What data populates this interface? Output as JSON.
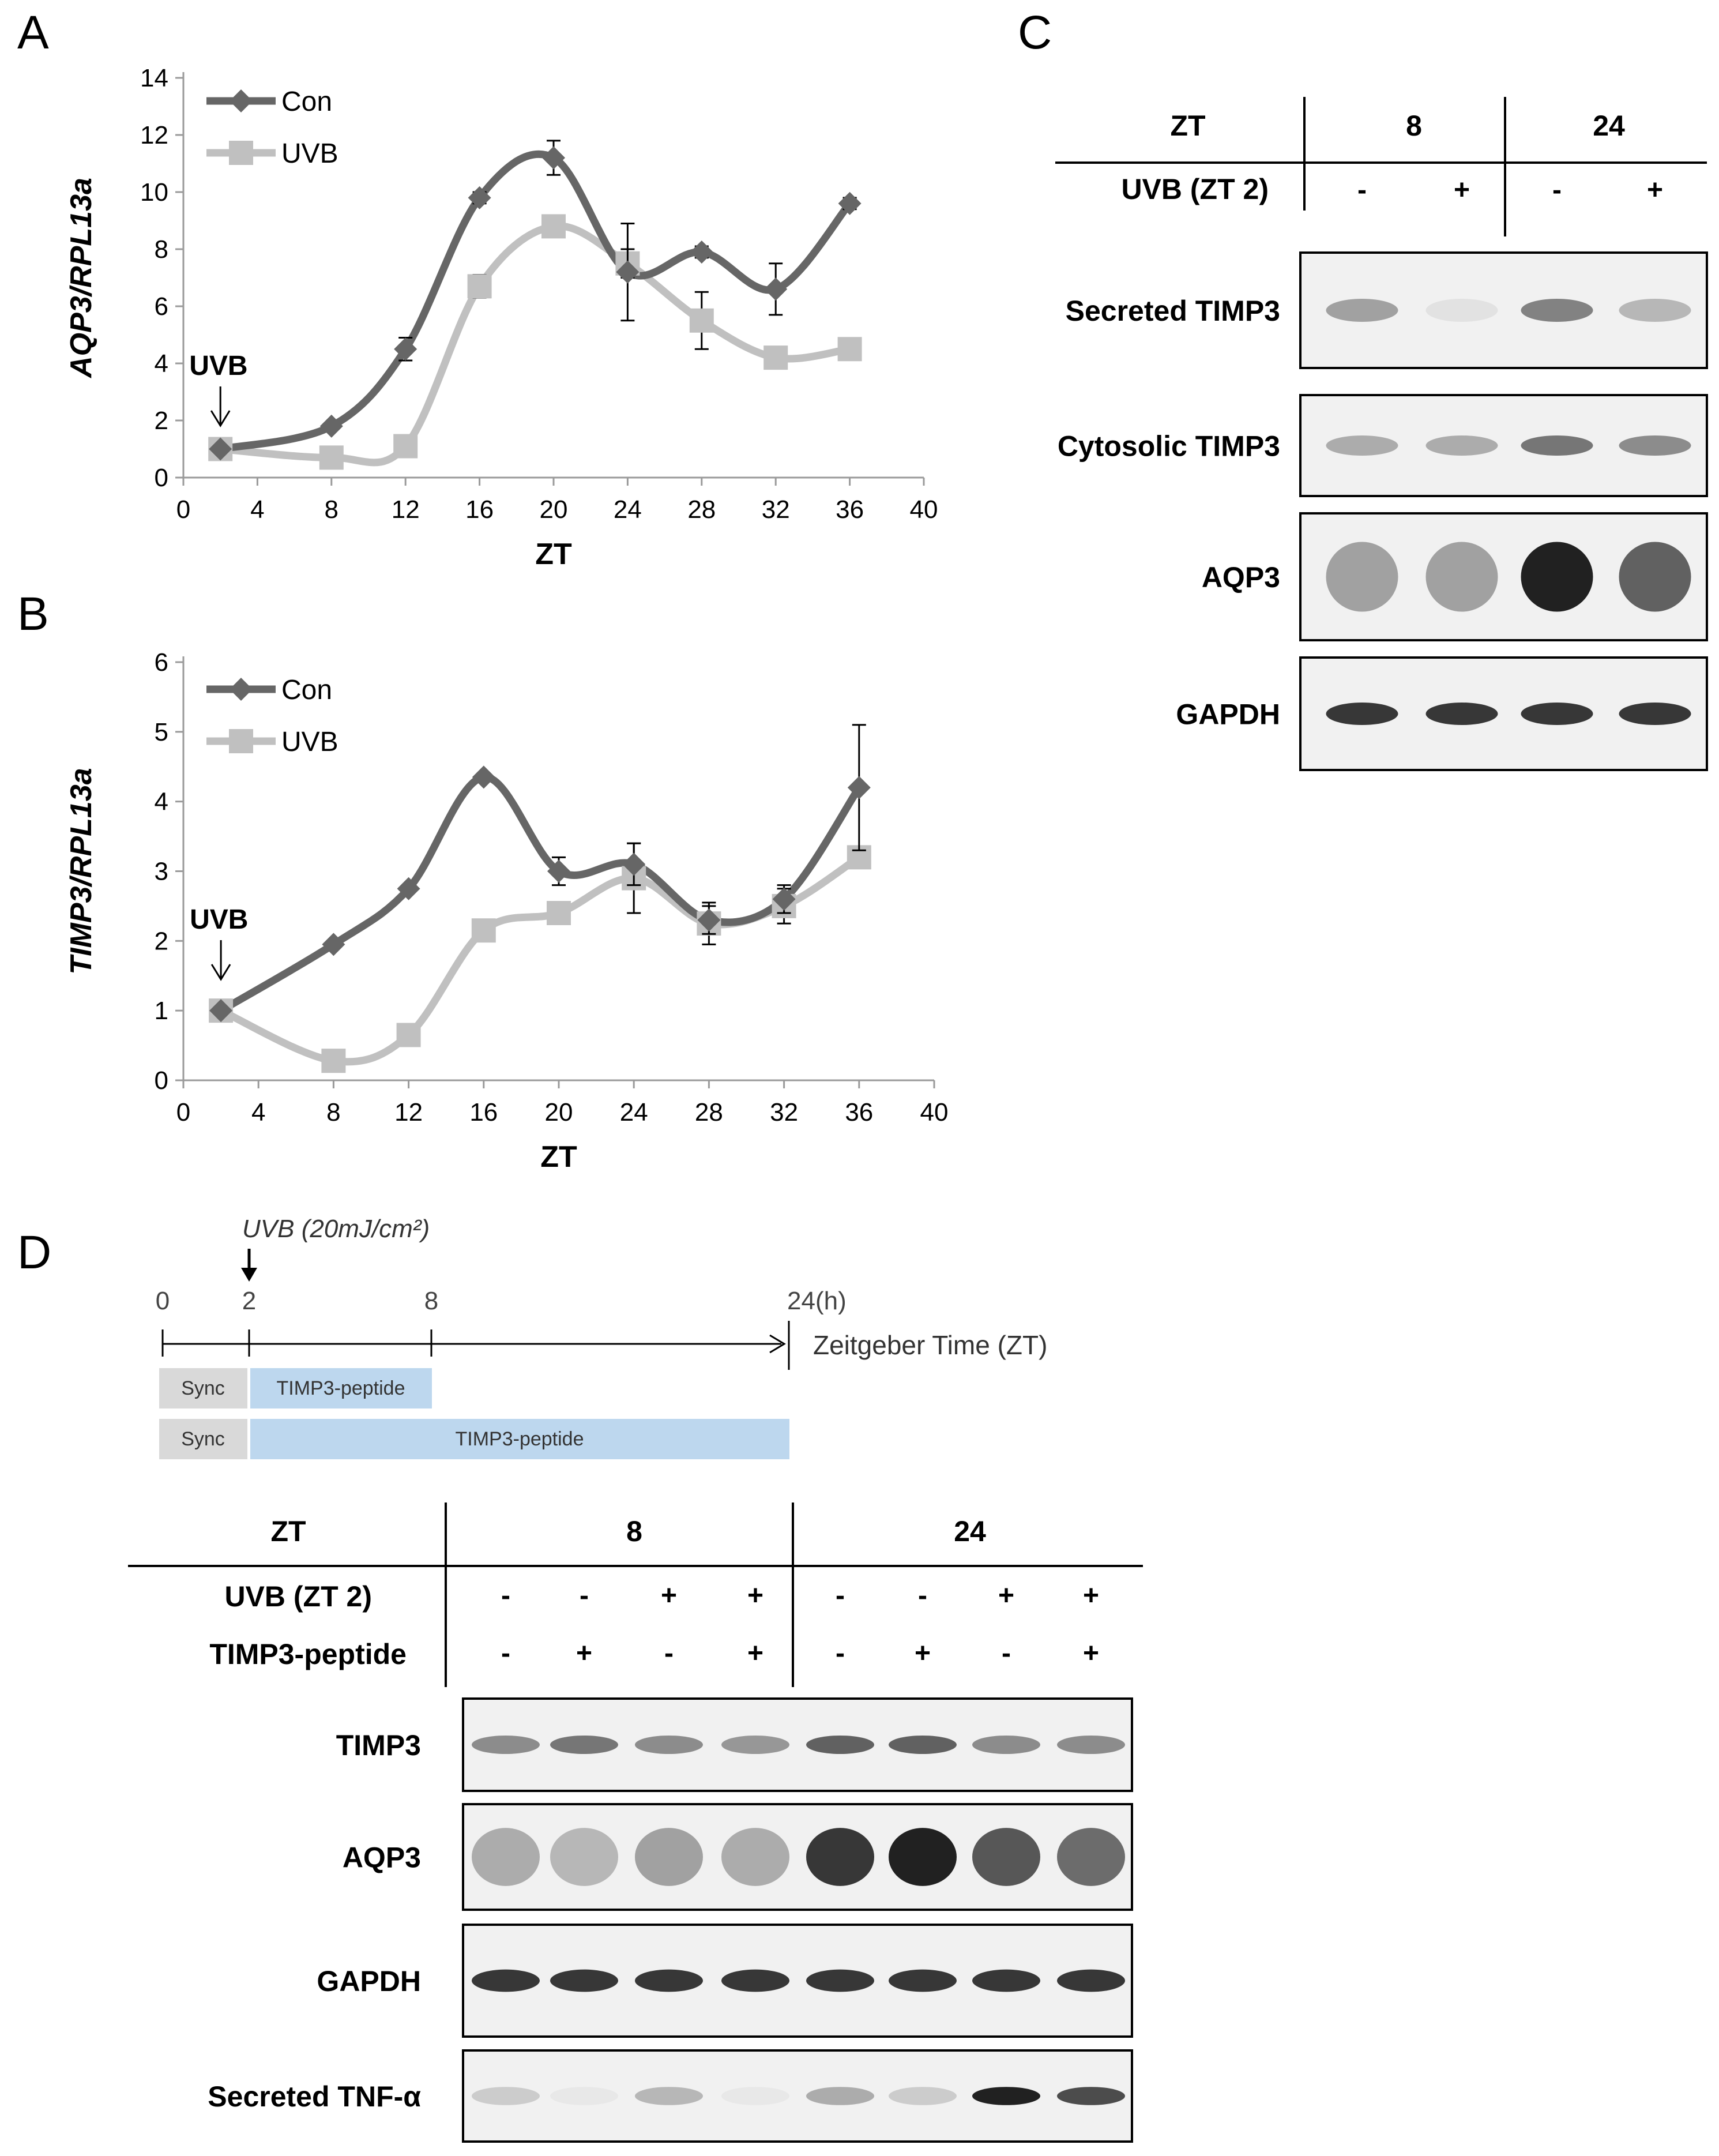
{
  "figure": {
    "panel_labels": {
      "a": "A",
      "b": "B",
      "c": "C",
      "d": "D"
    }
  },
  "colors": {
    "con": "#666666",
    "uvb": "#c0c0c0",
    "timeline_bar": "#bdd7ee",
    "sync_bar": "#d9d9d9"
  },
  "chart_data": [
    {
      "panel": "A",
      "type": "line",
      "xlabel": "ZT",
      "ylabel": "AQP3/RPL13a",
      "xlim": [
        0,
        40
      ],
      "ylim": [
        0,
        14
      ],
      "xticks": [
        0,
        4,
        8,
        12,
        16,
        20,
        24,
        28,
        32,
        36,
        40
      ],
      "yticks": [
        0,
        2,
        4,
        6,
        8,
        10,
        12,
        14
      ],
      "annotation": "UVB",
      "annotation_x": 2,
      "legend": [
        "Con",
        "UVB"
      ],
      "series": [
        {
          "name": "Con",
          "x": [
            2,
            8,
            12,
            16,
            20,
            24,
            28,
            32,
            36
          ],
          "y": [
            1.0,
            1.8,
            4.5,
            9.8,
            11.2,
            7.2,
            7.9,
            6.6,
            9.6
          ],
          "err": [
            0.1,
            0.1,
            0.4,
            0.2,
            0.6,
            1.7,
            0.2,
            0.9,
            0.2
          ]
        },
        {
          "name": "UVB",
          "x": [
            2,
            8,
            12,
            16,
            20,
            24,
            28,
            32,
            36
          ],
          "y": [
            1.0,
            0.7,
            1.1,
            6.7,
            8.8,
            7.5,
            5.5,
            4.2,
            4.5
          ],
          "err": [
            0.1,
            0.1,
            0.1,
            0.4,
            0.3,
            0.5,
            1.0,
            0.2,
            0.2
          ]
        }
      ]
    },
    {
      "panel": "B",
      "type": "line",
      "xlabel": "ZT",
      "ylabel": "TIMP3/RPL13a",
      "xlim": [
        0,
        40
      ],
      "ylim": [
        0,
        6
      ],
      "xticks": [
        0,
        4,
        8,
        12,
        16,
        20,
        24,
        28,
        32,
        36,
        40
      ],
      "yticks": [
        0,
        1,
        2,
        3,
        4,
        5,
        6
      ],
      "annotation": "UVB",
      "annotation_x": 2,
      "legend": [
        "Con",
        "UVB"
      ],
      "series": [
        {
          "name": "Con",
          "x": [
            2,
            8,
            12,
            16,
            20,
            24,
            28,
            32,
            36
          ],
          "y": [
            1.0,
            1.95,
            2.75,
            4.35,
            3.0,
            3.1,
            2.3,
            2.6,
            4.2
          ],
          "err": [
            0.1,
            0.15,
            0.1,
            0.15,
            0.2,
            0.3,
            0.2,
            0.2,
            0.9
          ]
        },
        {
          "name": "UVB",
          "x": [
            2,
            8,
            12,
            16,
            20,
            24,
            28,
            32,
            36
          ],
          "y": [
            1.0,
            0.28,
            0.65,
            2.15,
            2.4,
            2.9,
            2.25,
            2.5,
            3.2
          ],
          "err": [
            0.1,
            0.05,
            0.1,
            0.1,
            0.1,
            0.5,
            0.3,
            0.25,
            0.1
          ]
        }
      ]
    }
  ],
  "panel_c": {
    "header_zt": "ZT",
    "zt_values": [
      "8",
      "24"
    ],
    "uvb_label": "UVB (ZT 2)",
    "uvb_marks": [
      "-",
      "+",
      "-",
      "+"
    ],
    "blots": [
      {
        "label": "Secreted TIMP3",
        "intensity": [
          0.35,
          0.05,
          0.5,
          0.25
        ]
      },
      {
        "label": "Cytosolic TIMP3",
        "intensity": [
          0.3,
          0.3,
          0.55,
          0.45
        ]
      },
      {
        "label": "AQP3",
        "intensity": [
          0.35,
          0.35,
          0.95,
          0.65
        ]
      },
      {
        "label": "GAPDH",
        "intensity": [
          0.85,
          0.85,
          0.85,
          0.85
        ]
      }
    ]
  },
  "panel_d": {
    "timeline": {
      "uvb_dose": "UVB (20mJ/cm²)",
      "ticks": [
        "0",
        "2",
        "8",
        "24(h)"
      ],
      "axis_label": "Zeitgeber Time (ZT)",
      "row1": {
        "sync": "Sync",
        "peptide": "TIMP3-peptide"
      },
      "row2": {
        "sync": "Sync",
        "peptide": "TIMP3-peptide"
      }
    },
    "header_zt": "ZT",
    "zt_values": [
      "8",
      "24"
    ],
    "uvb_label": "UVB (ZT 2)",
    "peptide_label": "TIMP3-peptide",
    "uvb_marks": [
      "-",
      "-",
      "+",
      "+",
      "-",
      "-",
      "+",
      "+"
    ],
    "peptide_marks": [
      "-",
      "+",
      "-",
      "+",
      "-",
      "+",
      "-",
      "+"
    ],
    "blots": [
      {
        "label": "TIMP3",
        "intensity": [
          0.45,
          0.55,
          0.45,
          0.4,
          0.65,
          0.65,
          0.45,
          0.45
        ]
      },
      {
        "label": "AQP3",
        "intensity": [
          0.3,
          0.25,
          0.35,
          0.3,
          0.85,
          0.95,
          0.7,
          0.6
        ]
      },
      {
        "label": "GAPDH",
        "intensity": [
          0.85,
          0.85,
          0.85,
          0.85,
          0.85,
          0.85,
          0.85,
          0.85
        ]
      },
      {
        "label": "Secreted TNF-α",
        "intensity": [
          0.15,
          0.02,
          0.25,
          0.02,
          0.3,
          0.15,
          0.95,
          0.75
        ]
      }
    ]
  }
}
